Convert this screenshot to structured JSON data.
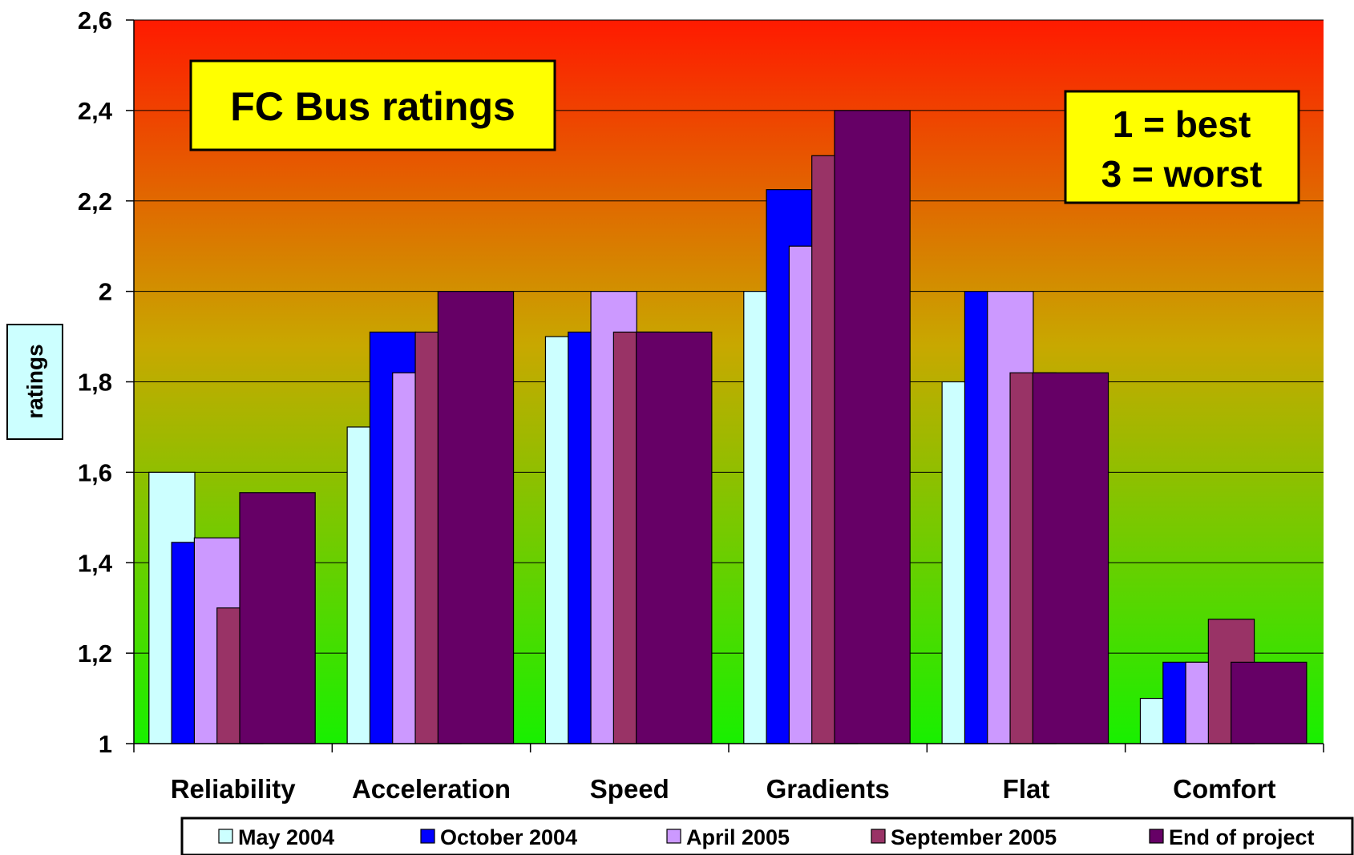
{
  "chart_data": {
    "type": "bar",
    "title": "FC Bus ratings",
    "note_lines": [
      "1 = best",
      "3 = worst"
    ],
    "ylabel": "ratings",
    "xlabel": "",
    "ylim": [
      1,
      2.6
    ],
    "yticks": [
      1,
      1.2,
      1.4,
      1.6,
      1.8,
      2,
      2.2,
      2.4,
      2.6
    ],
    "ytick_labels": [
      "1",
      "1,2",
      "1,4",
      "1,6",
      "1,8",
      "2",
      "2,2",
      "2,4",
      "2,6"
    ],
    "grid": true,
    "legend_position": "bottom",
    "categories": [
      "Reliability",
      "Acceleration",
      "Speed",
      "Gradients",
      "Flat",
      "Comfort"
    ],
    "series": [
      {
        "name": "May 2004",
        "color": "#ccffff",
        "values": [
          1.6,
          1.7,
          1.9,
          2.0,
          1.8,
          1.1
        ]
      },
      {
        "name": "October 2004",
        "color": "#0000ff",
        "values": [
          1.445,
          1.91,
          1.91,
          2.225,
          2.0,
          1.18
        ]
      },
      {
        "name": "April 2005",
        "color": "#cc99ff",
        "values": [
          1.455,
          1.82,
          2.0,
          2.1,
          2.0,
          1.18
        ]
      },
      {
        "name": "September 2005",
        "color": "#993366",
        "values": [
          1.3,
          1.91,
          1.91,
          2.3,
          1.82,
          1.275
        ]
      },
      {
        "name": "End of project",
        "color": "#660066",
        "values": [
          1.555,
          2.0,
          1.91,
          2.4,
          1.82,
          1.18
        ]
      }
    ],
    "background_gradient": {
      "top": "#ff1a00",
      "middle": "#c8a800",
      "bottom": "#18f000"
    }
  }
}
